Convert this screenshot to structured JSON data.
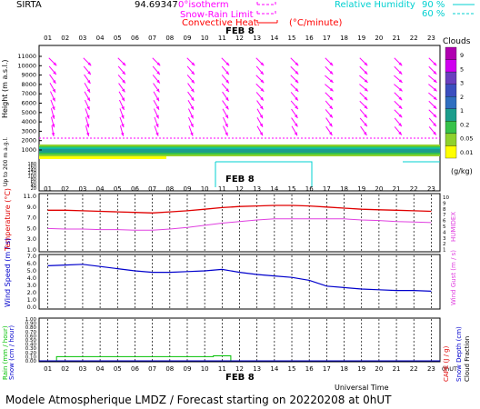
{
  "header": {
    "station": "SIRTA",
    "coords": "94.69347",
    "legend_isotherm": "0°isotherm",
    "legend_snowrain": "Snow-Rain Limit",
    "legend_convective": "Convective Heat.",
    "legend_unit": "(°C/minute)",
    "legend_rh": "Relative Humidity",
    "rh_90": "90 %",
    "rh_60": "60 %"
  },
  "date_label": "FEB  8",
  "hours": [
    "01",
    "02",
    "03",
    "04",
    "05",
    "06",
    "07",
    "08",
    "09",
    "10",
    "11",
    "12",
    "13",
    "14",
    "15",
    "16",
    "17",
    "18",
    "19",
    "20",
    "21",
    "22",
    "23"
  ],
  "colors": {
    "magenta": "#ff00ff",
    "cyan": "#00e5e5",
    "temp": "#e00000",
    "humidex": "#e040e0",
    "wind": "#0000cc",
    "rain": "#00c000"
  },
  "clouds": {
    "title": "Clouds",
    "unit": "(g/kg)",
    "scale_labels": [
      "9",
      "5",
      "3",
      "2",
      "1",
      "0.2",
      "0.05",
      "0.01"
    ],
    "scale_colors": [
      "#b000b0",
      "#d000f0",
      "#6b3fbf",
      "#3b4fbf",
      "#2f6fc0",
      "#1c9d8c",
      "#37c24a",
      "#8fd12e",
      "#ffff00"
    ]
  },
  "panel_top": {
    "ylabel": "Height  (m a.s.l.)",
    "ylabel2": "Up to 200 m a.g.l.",
    "yticks_upper": [
      "11000",
      "10000",
      "9000",
      "8000",
      "7000",
      "6000",
      "5000",
      "4000",
      "3000",
      "2000",
      "1000"
    ],
    "yticks_lower": [
      "180",
      "160",
      "140",
      "120",
      "100",
      "80",
      "60",
      "40",
      "20"
    ]
  },
  "panel_temp": {
    "ylabel": "Temperature (°C)",
    "ylabel_right": "HUMIDEX",
    "yticks": [
      "11.0",
      "9.0",
      "7.0",
      "5.0",
      "3.0",
      "1.0"
    ],
    "yticks_right": [
      "10",
      "9",
      "8",
      "7",
      "6",
      "5",
      "4",
      "3",
      "2",
      "1"
    ]
  },
  "panel_wind": {
    "ylabel": "Wind Speed (m / s)",
    "ylabel_right": "Wind Gust (m / s)",
    "yticks": [
      "7.0",
      "6.0",
      "5.0",
      "4.0",
      "3.0",
      "2.0",
      "1.0",
      "0.0"
    ]
  },
  "panel_rain": {
    "ylabel": "Rain (mm / hour)",
    "ylabel2": "Snow (cm / hour)",
    "ylabel_right": "CAPE (J / g)",
    "ylabel_right2": "Snow Depth (cm)",
    "ylabel_right3": "Cloud Fraction",
    "yticks": [
      "1.00",
      "0.90",
      "0.80",
      "0.70",
      "0.60",
      "0.50",
      "0.40",
      "0.30",
      "0.20",
      "0.10",
      "0.00"
    ],
    "xlabel": "Universal Time",
    "xtick_last": "0hUT"
  },
  "chart_data": {
    "type": "line",
    "x": [
      "01",
      "02",
      "03",
      "04",
      "05",
      "06",
      "07",
      "08",
      "09",
      "10",
      "11",
      "12",
      "13",
      "14",
      "15",
      "16",
      "17",
      "18",
      "19",
      "20",
      "21",
      "22",
      "23"
    ],
    "series": [
      {
        "name": "Temperature",
        "values": [
          8.4,
          8.4,
          8.3,
          8.2,
          8.1,
          8.0,
          7.9,
          8.1,
          8.3,
          8.6,
          8.9,
          9.1,
          9.2,
          9.3,
          9.3,
          9.2,
          9.0,
          8.8,
          8.6,
          8.5,
          8.4,
          8.3,
          8.2
        ]
      },
      {
        "name": "HUMIDEX",
        "values": [
          5.0,
          4.9,
          4.9,
          4.8,
          4.8,
          4.7,
          4.7,
          4.9,
          5.2,
          5.6,
          6.0,
          6.3,
          6.6,
          6.8,
          6.8,
          6.8,
          6.8,
          6.8,
          6.6,
          6.5,
          6.3,
          6.2,
          6.1
        ]
      },
      {
        "name": "Wind Speed",
        "values": [
          5.7,
          5.8,
          5.9,
          5.6,
          5.3,
          5.0,
          4.8,
          4.8,
          4.9,
          5.0,
          5.2,
          4.8,
          4.5,
          4.3,
          4.1,
          3.7,
          2.9,
          2.7,
          2.5,
          2.4,
          2.3,
          2.3,
          2.2
        ]
      },
      {
        "name": "Rain",
        "values": [
          0.0,
          0.1,
          0.1,
          0.1,
          0.1,
          0.1,
          0.1,
          0.1,
          0.1,
          0.1,
          0.12,
          0.0,
          0.0,
          0.0,
          0.0,
          0.0,
          0.0,
          0.0,
          0.0,
          0.0,
          0.0,
          0.0,
          0.0
        ]
      }
    ],
    "wind_arrow_heights_m": [
      10000,
      9000,
      8000,
      7000,
      6000,
      5000,
      4000,
      3000,
      2000
    ],
    "wind_arrow_dirs_deg": [
      [
        135,
        135,
        135,
        135,
        135,
        135,
        135,
        135,
        135,
        135,
        135,
        135
      ],
      [
        140,
        140,
        140,
        140,
        140,
        140,
        140,
        135,
        135,
        135,
        135,
        135
      ],
      [
        145,
        145,
        140,
        140,
        140,
        140,
        135,
        135,
        130,
        130,
        130,
        130
      ],
      [
        150,
        150,
        145,
        145,
        145,
        140,
        135,
        135,
        130,
        130,
        130,
        130
      ],
      [
        155,
        150,
        150,
        150,
        145,
        145,
        140,
        140,
        135,
        135,
        135,
        130
      ],
      [
        160,
        155,
        155,
        150,
        150,
        145,
        145,
        140,
        140,
        135,
        135,
        135
      ],
      [
        165,
        160,
        160,
        155,
        155,
        150,
        150,
        145,
        140,
        140,
        135,
        135
      ],
      [
        165,
        165,
        160,
        160,
        155,
        155,
        150,
        145,
        145,
        140,
        140,
        140
      ],
      [
        170,
        165,
        165,
        160,
        160,
        155,
        150,
        150,
        145,
        145,
        140,
        140
      ]
    ],
    "isotherm_height_m": 2500
  },
  "footer": "Modele Atmospherique LMDZ / Forecast starting on 20220208 at 0hUT"
}
